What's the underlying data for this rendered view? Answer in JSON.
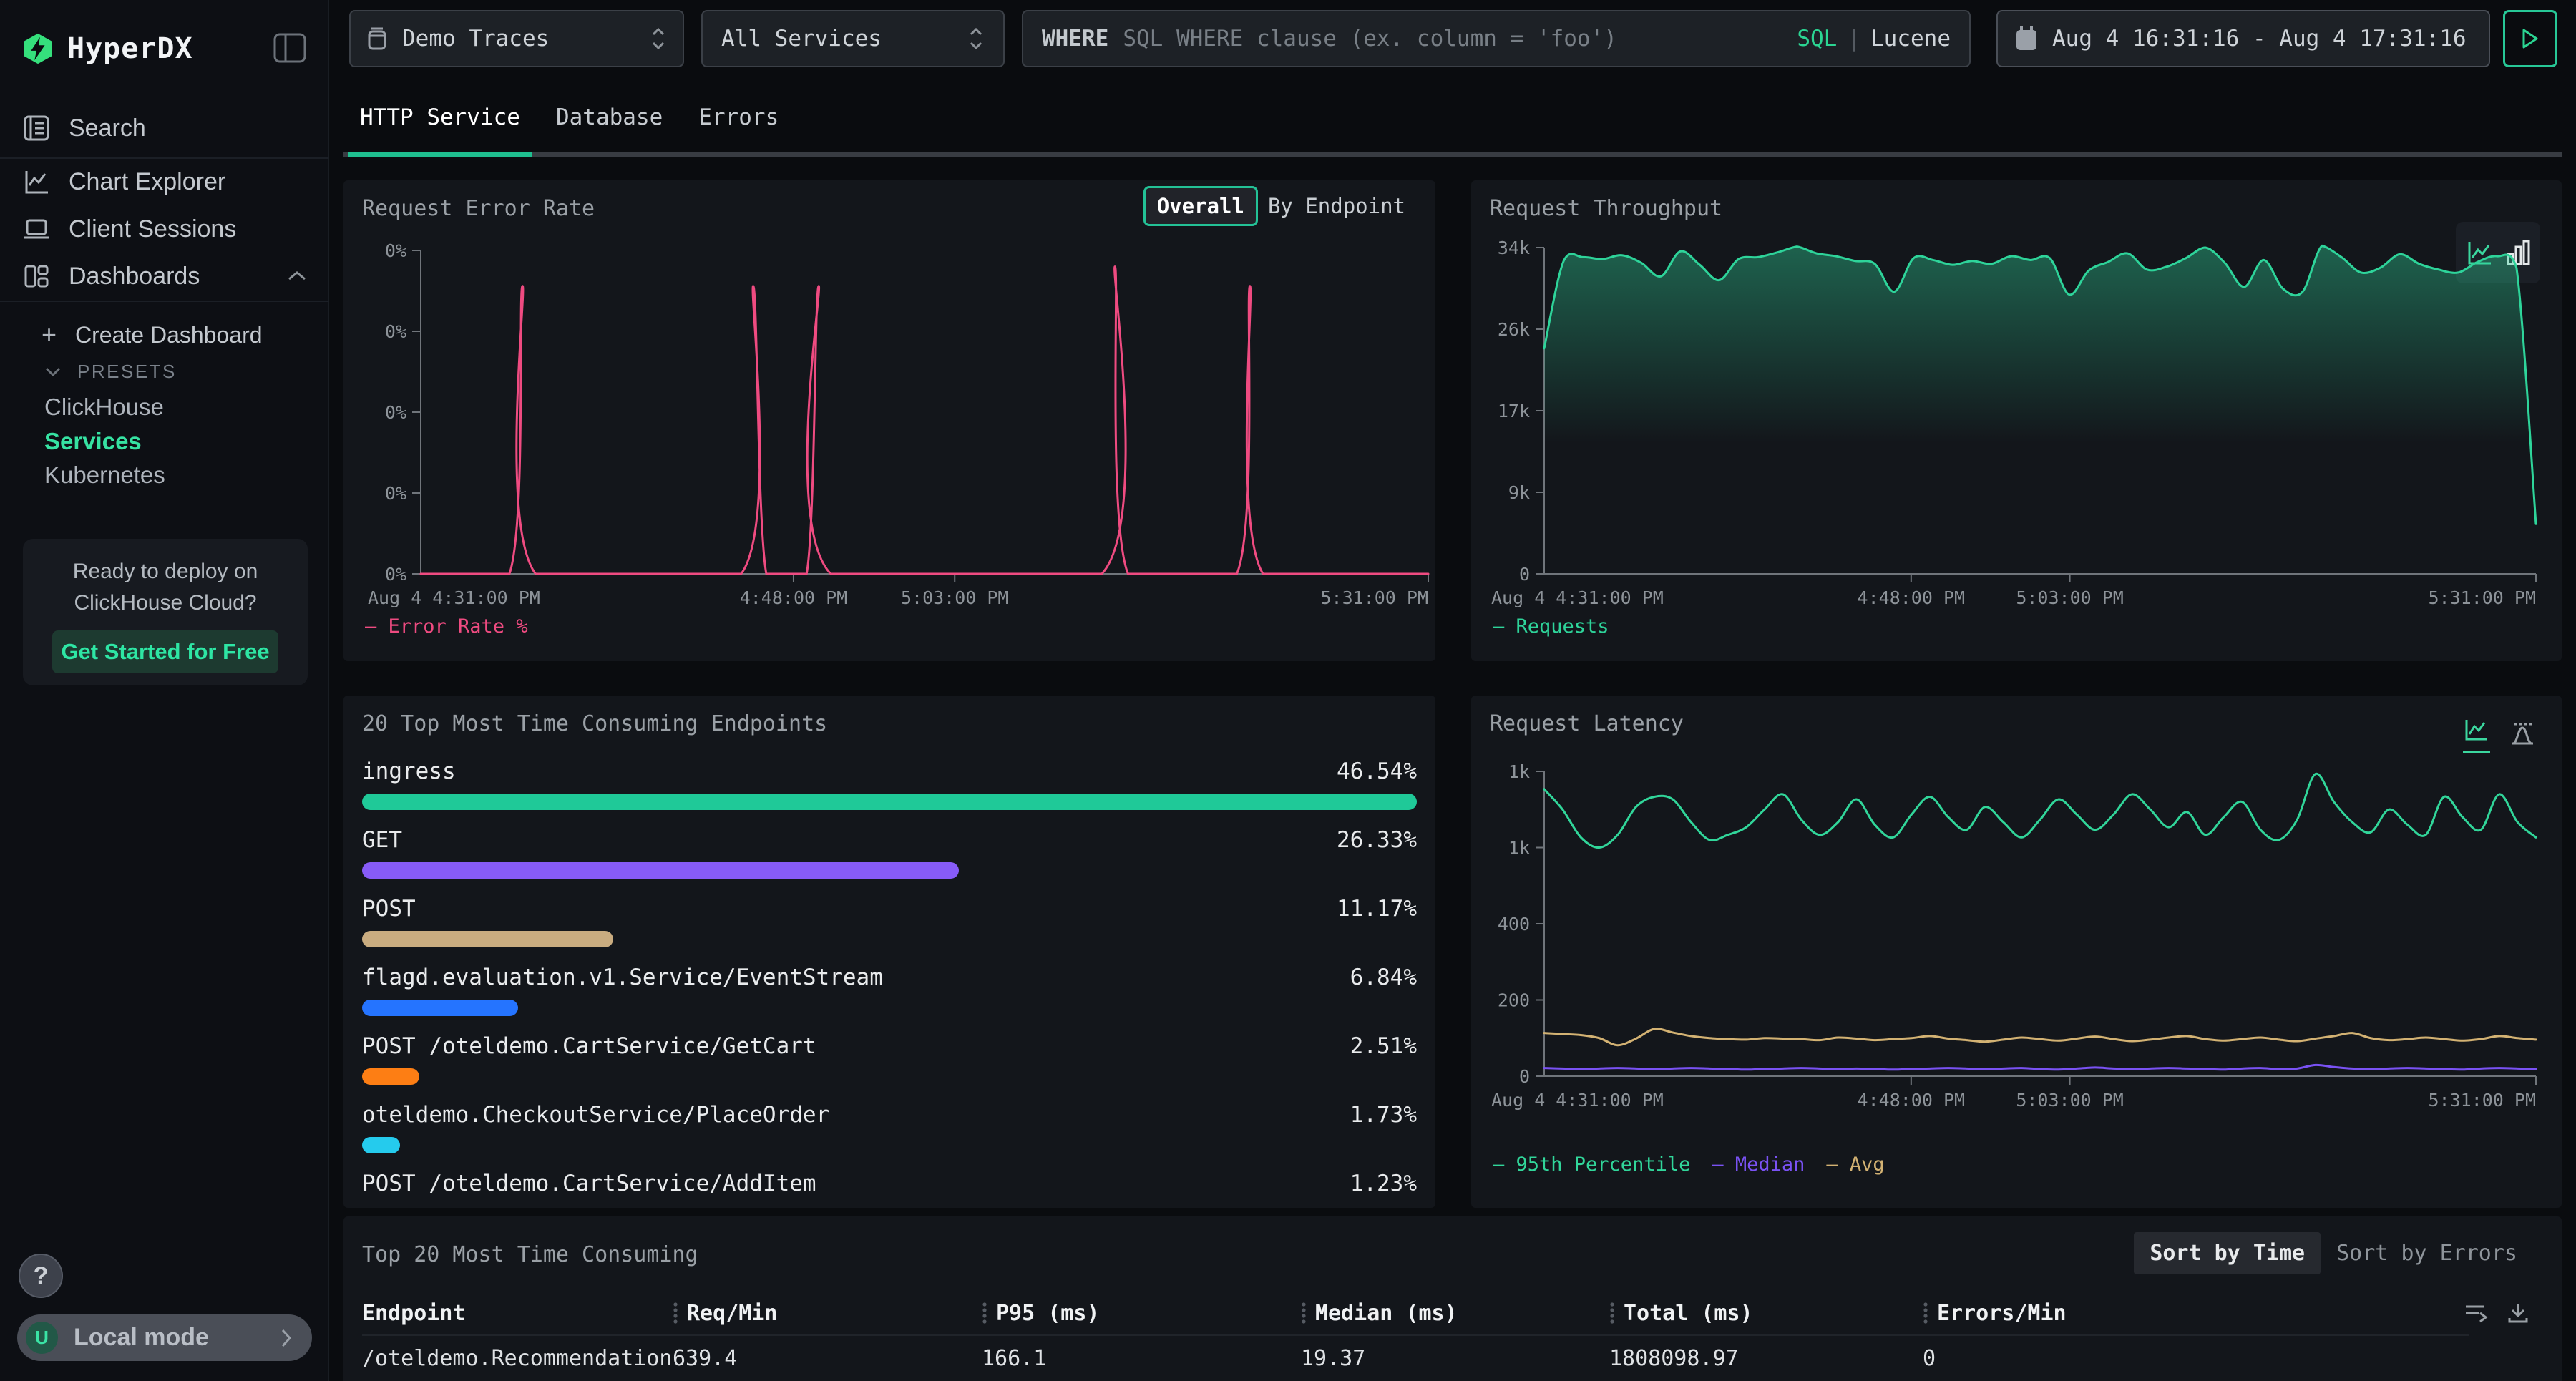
{
  "app": {
    "name": "HyperDX"
  },
  "sidebar": {
    "items": {
      "search": "Search",
      "chart_explorer": "Chart Explorer",
      "client_sessions": "Client Sessions",
      "dashboards": "Dashboards"
    },
    "dashboards_sub": {
      "create": "Create Dashboard",
      "presets_label": "PRESETS",
      "presets": [
        "ClickHouse",
        "Services",
        "Kubernetes"
      ],
      "active_preset": "Services"
    },
    "promo": {
      "line1": "Ready to deploy on",
      "line2": "ClickHouse Cloud?",
      "cta": "Get Started for Free"
    },
    "help_label": "?",
    "user": {
      "initial": "U",
      "label": "Local mode"
    }
  },
  "topbar": {
    "source_select": "Demo Traces",
    "service_select": "All Services",
    "where": {
      "label": "WHERE",
      "placeholder": "SQL WHERE clause (ex. column = 'foo')",
      "mode_sql": "SQL",
      "divider": "|",
      "mode_lucene": "Lucene"
    },
    "time_range": "Aug 4 16:31:16 - Aug 4 17:31:16"
  },
  "tabs": {
    "items": [
      {
        "label": "HTTP Service"
      },
      {
        "label": "Database"
      },
      {
        "label": "Errors"
      }
    ]
  },
  "error_rate_panel": {
    "title": "Request Error Rate",
    "toggle_overall": "Overall",
    "toggle_by_endpoint": "By Endpoint"
  },
  "throughput_panel": {
    "title": "Request Throughput"
  },
  "latency_panel": {
    "title": "Request Latency"
  },
  "endpoints_panel": {
    "title": "20 Top Most Time Consuming Endpoints",
    "rows": [
      {
        "label": "ingress",
        "pct": "46.54%",
        "width_pct": 100,
        "color": "#1fc998"
      },
      {
        "label": "GET",
        "pct": "26.33%",
        "width_pct": 56.6,
        "color": "#875bf7"
      },
      {
        "label": "POST",
        "pct": "11.17%",
        "width_pct": 23.8,
        "color": "#c9ac80"
      },
      {
        "label": "flagd.evaluation.v1.Service/EventStream",
        "pct": "6.84%",
        "width_pct": 14.8,
        "color": "#2574ff"
      },
      {
        "label": "POST /oteldemo.CartService/GetCart",
        "pct": "2.51%",
        "width_pct": 5.4,
        "color": "#fd7e14"
      },
      {
        "label": "oteldemo.CheckoutService/PlaceOrder",
        "pct": "1.73%",
        "width_pct": 3.6,
        "color": "#25cbed"
      },
      {
        "label": "POST /oteldemo.CartService/AddItem",
        "pct": "1.23%",
        "width_pct": 2.6,
        "color": "#1fc998"
      }
    ]
  },
  "table_panel": {
    "title": "Top 20 Most Time Consuming",
    "sort_time": "Sort by Time",
    "sort_errors": "Sort by Errors",
    "columns": [
      {
        "label": "Endpoint",
        "drag": false
      },
      {
        "label": "Req/Min",
        "drag": true
      },
      {
        "label": "P95 (ms)",
        "drag": true
      },
      {
        "label": "Median (ms)",
        "drag": true
      },
      {
        "label": "Total (ms)",
        "drag": true
      },
      {
        "label": "Errors/Min",
        "drag": true
      }
    ],
    "rows": [
      [
        "/oteldemo.RecommendationServ",
        "639.4",
        "166.1",
        "19.37",
        "1808098.97",
        "0"
      ]
    ]
  },
  "chart_data": [
    {
      "id": "error-rate",
      "type": "line",
      "title": "Request Error Rate",
      "yticks": [
        "0%",
        "0%",
        "0%",
        "0%",
        "0%"
      ],
      "ylim": [
        0,
        1
      ],
      "xticks": [
        {
          "f": 0,
          "label": "Aug 4 4:31:00 PM",
          "a": "start"
        },
        {
          "f": 0.37,
          "label": "4:48:00 PM"
        },
        {
          "f": 0.53,
          "label": "5:03:00 PM"
        },
        {
          "f": 1,
          "label": "5:31:00 PM",
          "a": "end"
        }
      ],
      "series": [
        {
          "name": "Error Rate %",
          "color": "#ef4b81",
          "points": [
            [
              0,
              0
            ],
            [
              0.088,
              0
            ],
            [
              0.101,
              0.89
            ],
            [
              0.114,
              0
            ],
            [
              0.318,
              0
            ],
            [
              0.33,
              0.89
            ],
            [
              0.343,
              0
            ],
            [
              0.383,
              0
            ],
            [
              0.395,
              0.89
            ],
            [
              0.407,
              0
            ],
            [
              0.676,
              0
            ],
            [
              0.689,
              0.95
            ],
            [
              0.702,
              0
            ],
            [
              0.81,
              0
            ],
            [
              0.823,
              0.89
            ],
            [
              0.836,
              0
            ],
            [
              1,
              0
            ]
          ]
        }
      ]
    },
    {
      "id": "throughput",
      "type": "line",
      "title": "Request Throughput",
      "yticks": [
        "34k",
        "26k",
        "17k",
        "9k",
        "0"
      ],
      "ylim": [
        0,
        34000
      ],
      "xticks": [
        {
          "f": 0,
          "label": "Aug 4 4:31:00 PM",
          "a": "start"
        },
        {
          "f": 0.37,
          "label": "4:48:00 PM"
        },
        {
          "f": 0.53,
          "label": "5:03:00 PM"
        },
        {
          "f": 1,
          "label": "5:31:00 PM",
          "a": "end"
        }
      ],
      "series": [
        {
          "name": "Requests",
          "color": "#2ed49a",
          "fill": true,
          "values": [
            23500,
            32600,
            33000,
            32800,
            33200,
            32400,
            31000,
            33600,
            32200,
            30600,
            32800,
            33000,
            33500,
            34100,
            33400,
            33100,
            32600,
            32300,
            29400,
            32900,
            32700,
            32200,
            32600,
            32300,
            33100,
            32700,
            32900,
            29100,
            31600,
            32500,
            33400,
            31700,
            32000,
            32900,
            34000,
            32400,
            29900,
            32700,
            29700,
            29400,
            34200,
            33000,
            31400,
            31900,
            33300,
            32300,
            31700,
            31400,
            32500,
            33100,
            31900,
            5200
          ]
        }
      ]
    },
    {
      "id": "latency",
      "type": "line",
      "title": "Request Latency",
      "yticks": [
        "1k",
        "1k",
        "400",
        "200",
        "0"
      ],
      "ylim": [
        0,
        1200
      ],
      "xticks": [
        {
          "f": 0,
          "label": "Aug 4 4:31:00 PM",
          "a": "start"
        },
        {
          "f": 0.37,
          "label": "4:48:00 PM"
        },
        {
          "f": 0.53,
          "label": "5:03:00 PM"
        },
        {
          "f": 1,
          "label": "5:31:00 PM",
          "a": "end"
        }
      ],
      "series": [
        {
          "name": "95th Percentile",
          "color": "#31d69a",
          "values": [
            1130,
            1050,
            940,
            900,
            950,
            1060,
            1100,
            1090,
            1000,
            930,
            950,
            980,
            1050,
            1110,
            1010,
            950,
            1000,
            1090,
            990,
            940,
            1030,
            1100,
            1020,
            970,
            1060,
            1000,
            940,
            1010,
            1090,
            1030,
            970,
            1030,
            1110,
            1050,
            980,
            1040,
            950,
            1020,
            1080,
            970,
            930,
            1010,
            1190,
            1080,
            1000,
            960,
            1050,
            990,
            950,
            1100,
            1020,
            970,
            1110,
            1000,
            940
          ]
        },
        {
          "name": "Median",
          "color": "#7a52f4",
          "values": [
            32,
            30,
            28,
            30,
            32,
            30,
            28,
            30,
            32,
            30,
            28,
            26,
            28,
            30,
            32,
            30,
            28,
            30,
            28,
            26,
            28,
            30,
            32,
            30,
            28,
            30,
            32,
            28,
            26,
            30,
            34,
            30,
            28,
            30,
            32,
            30,
            28,
            26,
            30,
            32,
            28,
            30,
            44,
            36,
            30,
            28,
            30,
            32,
            30,
            28,
            26,
            30,
            32,
            30,
            28
          ]
        },
        {
          "name": "Avg",
          "color": "#d3b273",
          "values": [
            170,
            166,
            162,
            150,
            122,
            148,
            186,
            172,
            158,
            150,
            146,
            144,
            150,
            148,
            146,
            142,
            152,
            148,
            142,
            146,
            150,
            158,
            148,
            142,
            136,
            144,
            152,
            146,
            140,
            148,
            156,
            146,
            138,
            144,
            152,
            158,
            146,
            140,
            146,
            152,
            144,
            138,
            148,
            158,
            170,
            150,
            142,
            146,
            152,
            146,
            140,
            146,
            158,
            150,
            144
          ]
        }
      ]
    }
  ]
}
